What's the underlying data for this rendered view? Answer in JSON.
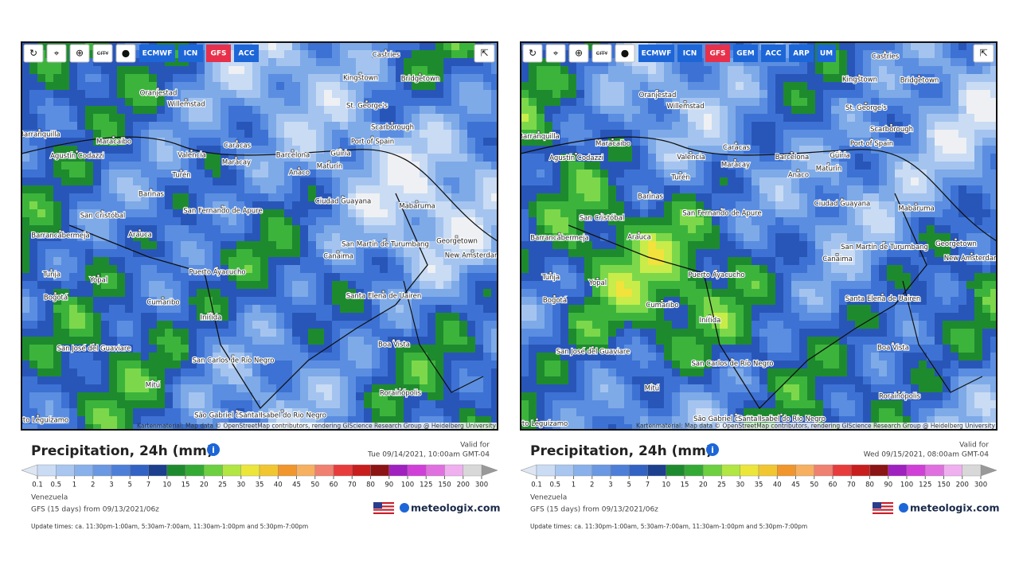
{
  "panels": [
    {
      "toolbar": {
        "city": "CITY",
        "models": [
          "ECMWF",
          "ICN",
          "GFS",
          "ACC"
        ],
        "active": "GFS"
      },
      "cities": [
        "Castries",
        "Kingstown",
        "Bridgetown",
        "Oranjestad",
        "Willemstad",
        "St. George's",
        "Barranquilla",
        "Scarborough",
        "Maracaibo",
        "Port of Spain",
        "Caracas",
        "Agustín Codazzi",
        "Valencia",
        "Barcelona",
        "Maracay",
        "Güiria",
        "Maturín",
        "Anaco",
        "Turén",
        "Barinas",
        "Ciudad Guayana",
        "Mabaruma",
        "San Fernando de Apure",
        "San Cristóbal",
        "Arauca",
        "Barrancabermeja",
        "Georgetown",
        "San Martín de Turumbang",
        "New Amsterdam",
        "Canaima",
        "Tunja",
        "Yopal",
        "Puerto Ayacucho",
        "Bogotá",
        "Santa Elena de Uairen",
        "Cumaribo",
        "Inírida",
        "Boa Vista",
        "San José del Guaviare",
        "San Carlos de Río Negro",
        "Mitú",
        "Rorainópolis",
        "São Gabriel da Cachoeira",
        "Santa Isabel do Rio Negro",
        "Puerto Leguízamo"
      ],
      "attribution": "Kartenmaterial: Map data © OpenStreetMap contributors, rendering GIScience Research Group @ Heidelberg University",
      "title": "Precipitation, 24h (mm)",
      "valid_label": "Valid for",
      "valid_time": "Tue 09/14/2021, 10:00am GMT-04",
      "scale": [
        0.1,
        0.5,
        1,
        2,
        3,
        5,
        7,
        10,
        15,
        20,
        25,
        30,
        35,
        40,
        45,
        50,
        60,
        70,
        80,
        90,
        100,
        125,
        150,
        200,
        300
      ],
      "region": "Venezuela",
      "model_run": "GFS (15 days) from 09/13/2021/06z",
      "logo": "meteologix.com",
      "update": "Update times: ca. 11:30pm-1:00am, 5:30am-7:00am, 11:30am-1:00pm and 5:30pm-7:00pm"
    },
    {
      "toolbar": {
        "city": "CITY",
        "models": [
          "ECMWF",
          "ICN",
          "GFS",
          "GEM",
          "ACC",
          "ARP",
          "UM"
        ],
        "active": "GFS"
      },
      "cities": [
        "Castries",
        "Kingstown",
        "Bridgetown",
        "Oranjestad",
        "Willemstad",
        "St. George's",
        "Barranquilla",
        "Scarborough",
        "Maracaibo",
        "Port of Spain",
        "Caracas",
        "Agustín Codazzi",
        "Valencia",
        "Barcelona",
        "Maracay",
        "Güiria",
        "Maturín",
        "Anaco",
        "Turén",
        "Barinas",
        "Ciudad Guayana",
        "Mabaruma",
        "San Fernando de Apure",
        "San Cristóbal",
        "Arauca",
        "Barrancabermeja",
        "Georgetown",
        "San Martín de Turumbang",
        "New Amsterdam",
        "Canaima",
        "Tunja",
        "Yopal",
        "Puerto Ayacucho",
        "Bogotá",
        "Santa Elena de Uairen",
        "Cumaribo",
        "Inírida",
        "Boa Vista",
        "San José del Guaviare",
        "San Carlos de Río Negro",
        "Mitú",
        "Rorainópolis",
        "São Gabriel da Cachoeira",
        "Santa Isabel do Rio Negro",
        "Puerto Leguízamo"
      ],
      "attribution": "Kartenmaterial: Map data © OpenStreetMap contributors, rendering GIScience Research Group @ Heidelberg University",
      "title": "Precipitation, 24h (mm)",
      "valid_label": "Valid for",
      "valid_time": "Wed 09/15/2021, 08:00am GMT-04",
      "scale": [
        0.1,
        0.5,
        1,
        2,
        3,
        5,
        7,
        10,
        15,
        20,
        25,
        30,
        35,
        40,
        45,
        50,
        60,
        70,
        80,
        90,
        100,
        125,
        150,
        200,
        300
      ],
      "region": "Venezuela",
      "model_run": "GFS (15 days) from 09/13/2021/06z",
      "logo": "meteologix.com",
      "update": "Update times: ca. 11:30pm-1:00am, 5:30am-7:00am, 11:30am-1:00pm and 5:30pm-7:00pm"
    }
  ]
}
